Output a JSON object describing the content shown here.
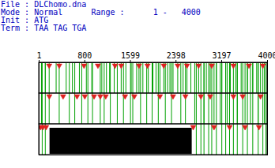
{
  "chart_data": {
    "type": "orf_map",
    "header": [
      "File : DLChomo.dna",
      "Mode : Normal      Range :      1 -   4000",
      "Init : ATG",
      "Term : TAA TAG TGA"
    ],
    "xlim": [
      1,
      4000
    ],
    "xticks": [
      1,
      800,
      1599,
      2398,
      3197,
      4000
    ],
    "tick_labels": "x",
    "colors": [
      "#00a000",
      "#e02020",
      "#000000"
    ],
    "series": [
      {
        "starts": [
          109,
          299,
          475,
          584,
          706,
          828,
          923,
          1099,
          1180,
          1235,
          1316,
          1438,
          1520,
          1614,
          1709,
          1750,
          1818,
          1913,
          1994,
          2048,
          2116,
          2184,
          2251,
          2292,
          2346,
          2428,
          2522,
          2590,
          2658,
          2794,
          2929,
          2997,
          3105,
          3200,
          3268,
          3349,
          3444,
          3539,
          3648,
          3742,
          3810,
          3878
        ],
        "stops": [
          177,
          353,
          787,
          1031,
          1330,
          1438,
          1750,
          1899,
          2184,
          2428,
          2590,
          2794,
          3024,
          3403,
          3675,
          3919
        ],
        "orfs": []
      },
      {
        "starts": [
          42,
          177,
          353,
          530,
          625,
          747,
          855,
          936,
          1072,
          1140,
          1248,
          1370,
          1478,
          1601,
          1641,
          1777,
          1885,
          1980,
          2088,
          2211,
          2319,
          2482,
          2563,
          2726,
          2888,
          3064,
          3173,
          3295,
          3471,
          3607,
          3702,
          3837,
          3945
        ],
        "stops": [
          180,
          421,
          665,
          801,
          963,
          1072,
          1167,
          1506,
          1668,
          2116,
          2346,
          2563,
          2834,
          2997,
          3403,
          3566,
          3878
        ],
        "orfs": []
      },
      {
        "starts": [
          55,
          109,
          2753,
          2834,
          2888,
          2970,
          3024,
          3105,
          3200,
          3268,
          3336,
          3403,
          3471,
          3566,
          3648,
          3742,
          3837,
          3919,
          3973
        ],
        "stops": [
          28,
          69,
          123,
          2699,
          3064,
          3336,
          3607,
          3851
        ],
        "orfs": [
          [
            190,
            2680
          ]
        ]
      }
    ]
  }
}
